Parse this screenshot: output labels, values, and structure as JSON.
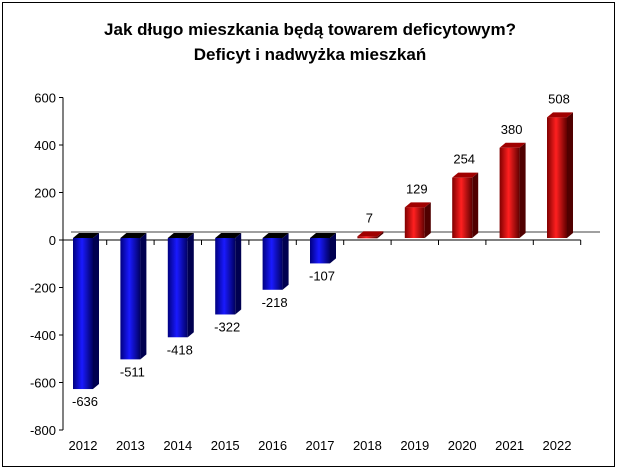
{
  "chart_data": {
    "type": "bar",
    "title": "Jak długo mieszkania będą towarem deficytowym?",
    "subtitle": "Deficyt i nadwyżka mieszkań",
    "xlabel": "",
    "ylabel": "",
    "categories": [
      "2012",
      "2013",
      "2014",
      "2015",
      "2016",
      "2017",
      "2018",
      "2019",
      "2020",
      "2021",
      "2022"
    ],
    "values": [
      -636,
      -511,
      -418,
      -322,
      -218,
      -107,
      7,
      129,
      254,
      380,
      508
    ],
    "ylim": [
      -800,
      600
    ],
    "yticks": [
      600,
      400,
      200,
      0,
      -200,
      -400,
      -600,
      -800
    ],
    "grid": false,
    "colors": {
      "negative": "#0000ff",
      "positive": "#ff0000"
    }
  }
}
